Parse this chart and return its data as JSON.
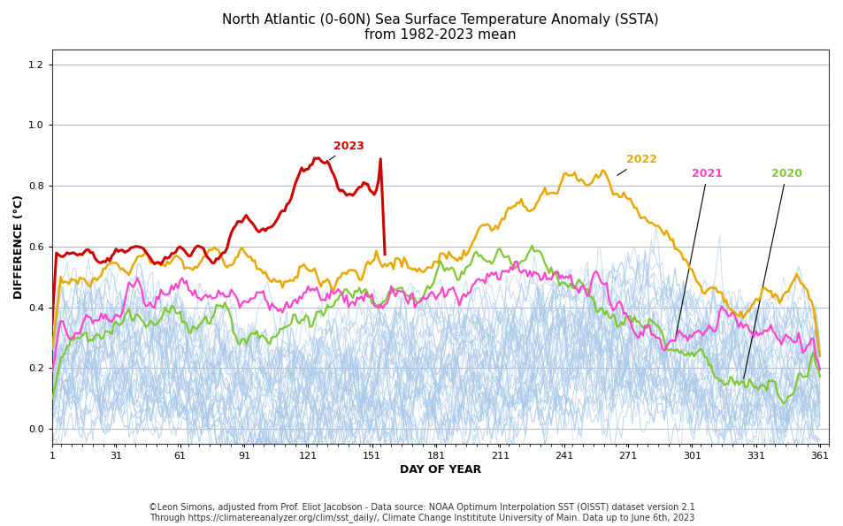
{
  "title_line1": "North Atlantic (0-60N) Sea Surface Temperature Anomaly (SSTA)",
  "title_line2": "from 1982-2023 mean",
  "xlabel": "DAY OF YEAR",
  "ylabel": "DIFFERENCE (°C)",
  "xlim": [
    1,
    365
  ],
  "ylim": [
    -0.05,
    1.25
  ],
  "yticks": [
    0,
    0.2,
    0.4,
    0.6,
    0.8,
    1.0,
    1.2
  ],
  "xticks": [
    1,
    31,
    61,
    91,
    121,
    151,
    181,
    211,
    241,
    271,
    301,
    331,
    361
  ],
  "bg_color": "#ffffff",
  "grid_color": "#aaaacc",
  "bg_line_color": "#a8c8e8",
  "color_2020": "#7ec830",
  "color_2021": "#ff44cc",
  "color_2022": "#e8a800",
  "color_2023": "#cc0000",
  "annotation_color": "#000000",
  "footnote_line1": "©Leon Simons, adjusted from Prof. Eliot Jacobson - Data source: NOAA Optimum Interpolation SST (OISST) dataset version 2.1",
  "footnote_line2": "Through https://climatereanalyzer.org/clim/sst_daily/, Climate Change Instititute University of Main. Data up to June 6th, 2023"
}
